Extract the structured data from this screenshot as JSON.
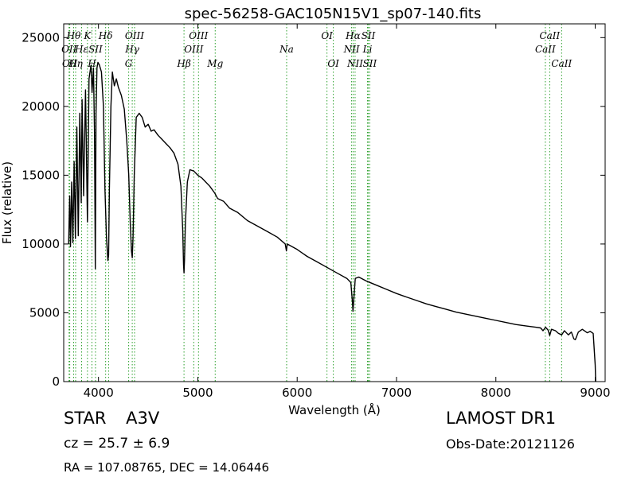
{
  "chart_data": {
    "type": "line",
    "title": "spec-56258-GAC105N15V1_sp07-140.fits",
    "xlabel": "Wavelength (Å)",
    "ylabel": "Flux (relative)",
    "xlim": [
      3650,
      9100
    ],
    "ylim": [
      0,
      26000
    ],
    "xticks": [
      4000,
      5000,
      6000,
      7000,
      8000,
      9000
    ],
    "yticks": [
      0,
      5000,
      10000,
      15000,
      20000,
      25000
    ],
    "grid": false,
    "line_color": "#000000",
    "marker_color": "#2ca02c",
    "spectrum": [
      [
        3700,
        10000
      ],
      [
        3710,
        13500
      ],
      [
        3718,
        9800
      ],
      [
        3730,
        14500
      ],
      [
        3742,
        10100
      ],
      [
        3755,
        16000
      ],
      [
        3768,
        10400
      ],
      [
        3782,
        18500
      ],
      [
        3797,
        10600
      ],
      [
        3812,
        19500
      ],
      [
        3826,
        13000
      ],
      [
        3835,
        20500
      ],
      [
        3850,
        13500
      ],
      [
        3870,
        21200
      ],
      [
        3889,
        11600
      ],
      [
        3905,
        22000
      ],
      [
        3925,
        23000
      ],
      [
        3935,
        21000
      ],
      [
        3950,
        22800
      ],
      [
        3960,
        18000
      ],
      [
        3968,
        8200
      ],
      [
        3975,
        19500
      ],
      [
        3985,
        22800
      ],
      [
        3995,
        23200
      ],
      [
        4010,
        23000
      ],
      [
        4030,
        22500
      ],
      [
        4050,
        20000
      ],
      [
        4065,
        14000
      ],
      [
        4080,
        10500
      ],
      [
        4095,
        8800
      ],
      [
        4102,
        9200
      ],
      [
        4110,
        14000
      ],
      [
        4125,
        20000
      ],
      [
        4140,
        22500
      ],
      [
        4160,
        21500
      ],
      [
        4180,
        22000
      ],
      [
        4200,
        21400
      ],
      [
        4230,
        20800
      ],
      [
        4260,
        19800
      ],
      [
        4285,
        17500
      ],
      [
        4305,
        15000
      ],
      [
        4320,
        11500
      ],
      [
        4332,
        9500
      ],
      [
        4340,
        9000
      ],
      [
        4348,
        10500
      ],
      [
        4360,
        15000
      ],
      [
        4380,
        19200
      ],
      [
        4410,
        19500
      ],
      [
        4440,
        19200
      ],
      [
        4470,
        18500
      ],
      [
        4500,
        18700
      ],
      [
        4530,
        18200
      ],
      [
        4560,
        18300
      ],
      [
        4600,
        17900
      ],
      [
        4640,
        17600
      ],
      [
        4680,
        17300
      ],
      [
        4720,
        17000
      ],
      [
        4760,
        16600
      ],
      [
        4800,
        15800
      ],
      [
        4830,
        14200
      ],
      [
        4848,
        11000
      ],
      [
        4856,
        8500
      ],
      [
        4861,
        7900
      ],
      [
        4866,
        8800
      ],
      [
        4875,
        11500
      ],
      [
        4895,
        14500
      ],
      [
        4920,
        15400
      ],
      [
        4960,
        15300
      ],
      [
        5000,
        15000
      ],
      [
        5040,
        14800
      ],
      [
        5080,
        14500
      ],
      [
        5120,
        14200
      ],
      [
        5170,
        13700
      ],
      [
        5200,
        13300
      ],
      [
        5260,
        13100
      ],
      [
        5320,
        12600
      ],
      [
        5400,
        12300
      ],
      [
        5500,
        11700
      ],
      [
        5600,
        11300
      ],
      [
        5700,
        10900
      ],
      [
        5800,
        10500
      ],
      [
        5880,
        10000
      ],
      [
        5892,
        9500
      ],
      [
        5900,
        10000
      ],
      [
        6000,
        9600
      ],
      [
        6100,
        9100
      ],
      [
        6200,
        8700
      ],
      [
        6300,
        8300
      ],
      [
        6400,
        7900
      ],
      [
        6500,
        7500
      ],
      [
        6540,
        7200
      ],
      [
        6556,
        5800
      ],
      [
        6562,
        5100
      ],
      [
        6568,
        5800
      ],
      [
        6585,
        7500
      ],
      [
        6620,
        7600
      ],
      [
        6700,
        7300
      ],
      [
        6800,
        7000
      ],
      [
        6900,
        6700
      ],
      [
        7000,
        6400
      ],
      [
        7100,
        6150
      ],
      [
        7200,
        5900
      ],
      [
        7300,
        5650
      ],
      [
        7400,
        5450
      ],
      [
        7500,
        5250
      ],
      [
        7600,
        5050
      ],
      [
        7700,
        4900
      ],
      [
        7800,
        4750
      ],
      [
        7900,
        4600
      ],
      [
        8000,
        4450
      ],
      [
        8100,
        4300
      ],
      [
        8200,
        4150
      ],
      [
        8300,
        4050
      ],
      [
        8400,
        3950
      ],
      [
        8450,
        3900
      ],
      [
        8475,
        3700
      ],
      [
        8500,
        3950
      ],
      [
        8525,
        3750
      ],
      [
        8542,
        3350
      ],
      [
        8560,
        3800
      ],
      [
        8600,
        3700
      ],
      [
        8630,
        3500
      ],
      [
        8662,
        3400
      ],
      [
        8690,
        3700
      ],
      [
        8730,
        3400
      ],
      [
        8760,
        3600
      ],
      [
        8785,
        3100
      ],
      [
        8800,
        3050
      ],
      [
        8830,
        3600
      ],
      [
        8870,
        3800
      ],
      [
        8920,
        3550
      ],
      [
        8950,
        3650
      ],
      [
        8980,
        3500
      ],
      [
        9000,
        1200
      ],
      [
        9005,
        0
      ]
    ],
    "lines": [
      {
        "x": 3704,
        "label": "OII",
        "tier": 2
      },
      {
        "x": 3711,
        "label": "OII",
        "tier": 3
      },
      {
        "x": 3750,
        "label": "Hθ",
        "tier": 1
      },
      {
        "x": 3770,
        "label": "Hη",
        "tier": 3
      },
      {
        "x": 3830,
        "label": "Hε",
        "tier": 2
      },
      {
        "x": 3889,
        "label": "K",
        "tier": 1
      },
      {
        "x": 3934,
        "label": "H",
        "tier": 3
      },
      {
        "x": 3970,
        "label": "SII",
        "tier": 2
      },
      {
        "x": 4072,
        "label": "Hδ",
        "tier": 1
      },
      {
        "x": 4102,
        "label": "",
        "tier": 0
      },
      {
        "x": 4304,
        "label": "G",
        "tier": 3
      },
      {
        "x": 4340,
        "label": "Hγ",
        "tier": 2
      },
      {
        "x": 4363,
        "label": "OIII",
        "tier": 1
      },
      {
        "x": 4861,
        "label": "Hβ",
        "tier": 3
      },
      {
        "x": 4959,
        "label": "OIII",
        "tier": 2
      },
      {
        "x": 5007,
        "label": "OIII",
        "tier": 1
      },
      {
        "x": 5175,
        "label": "Mg",
        "tier": 3
      },
      {
        "x": 5894,
        "label": "Na",
        "tier": 2
      },
      {
        "x": 6300,
        "label": "OI",
        "tier": 1
      },
      {
        "x": 6364,
        "label": "OI",
        "tier": 3
      },
      {
        "x": 6548,
        "label": "NII",
        "tier": 2
      },
      {
        "x": 6563,
        "label": "Hα",
        "tier": 1
      },
      {
        "x": 6583,
        "label": "NII",
        "tier": 3
      },
      {
        "x": 6708,
        "label": "Li",
        "tier": 2
      },
      {
        "x": 6716,
        "label": "SII",
        "tier": 1
      },
      {
        "x": 6731,
        "label": "SII",
        "tier": 3
      },
      {
        "x": 8498,
        "label": "CaII",
        "tier": 2
      },
      {
        "x": 8542,
        "label": "CaII",
        "tier": 1
      },
      {
        "x": 8662,
        "label": "CaII",
        "tier": 3
      }
    ]
  },
  "footer": {
    "object_type": "STAR",
    "subclass": "A3V",
    "cz": "cz = 25.7 ± 6.9",
    "radec": "RA = 107.08765, DEC = 14.06446",
    "survey": "LAMOST DR1",
    "obs_date": "Obs-Date:20121126"
  }
}
